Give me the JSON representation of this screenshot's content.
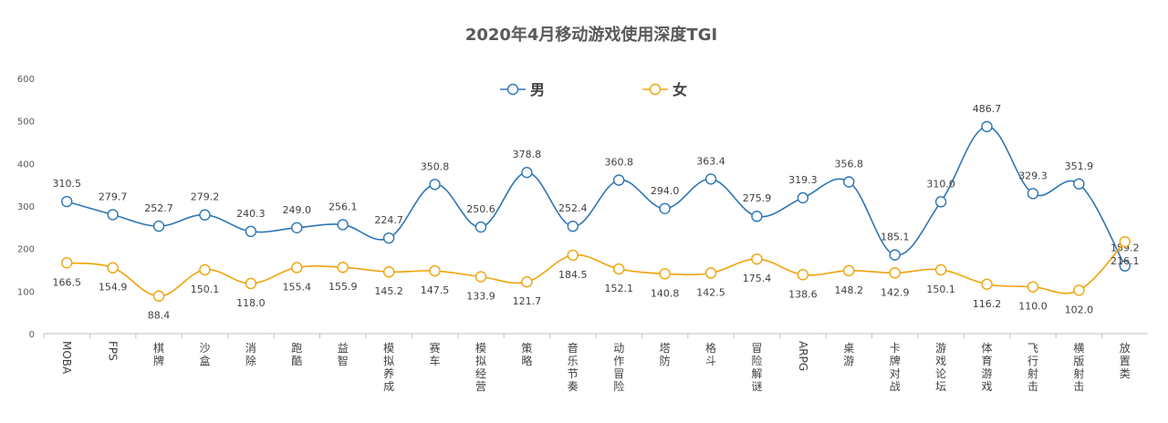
{
  "chart_data": {
    "type": "line",
    "title": "2020年4月移动游戏使用深度TGI",
    "xlabel": "",
    "ylabel": "",
    "ylim": [
      0,
      600
    ],
    "yticks": [
      0,
      100,
      200,
      300,
      400,
      500,
      600
    ],
    "grid": false,
    "legend_position": "top",
    "smooth": true,
    "categories": [
      "MOBA",
      "FPS",
      "棋牌",
      "沙盒",
      "消除",
      "跑酷",
      "益智",
      "模拟养成",
      "赛车",
      "模拟经营",
      "策略",
      "音乐节奏",
      "动作冒险",
      "塔防",
      "格斗",
      "冒险解谜",
      "ARPG",
      "桌游",
      "卡牌对战",
      "游戏论坛",
      "体育游戏",
      "飞行射击",
      "横版射击",
      "放置类"
    ],
    "series": [
      {
        "name": "男",
        "color": "#2E75B6",
        "values": [
          310.5,
          279.7,
          252.7,
          279.2,
          240.3,
          249.0,
          256.1,
          224.7,
          350.8,
          250.6,
          378.8,
          252.4,
          360.8,
          294.0,
          363.4,
          275.9,
          319.3,
          356.8,
          185.1,
          310.0,
          486.7,
          329.3,
          351.9,
          159.2
        ],
        "labels": [
          "310.5",
          "279.7",
          "252.7",
          "279.2",
          "240.3",
          "249.0",
          "256.1",
          "224.7",
          "350.8",
          "250.6",
          "378.8",
          "252.4",
          "360.8",
          "294.0",
          "363.4",
          "275.9",
          "319.3",
          "356.8",
          "185.1",
          "310.0",
          "486.7",
          "329.3",
          "351.9",
          "159.2"
        ]
      },
      {
        "name": "女",
        "color": "#F0A30A",
        "values": [
          166.5,
          154.9,
          88.4,
          150.1,
          118.0,
          155.4,
          155.9,
          145.2,
          147.5,
          133.9,
          121.7,
          184.5,
          152.1,
          140.8,
          142.5,
          175.4,
          138.6,
          148.2,
          142.9,
          150.1,
          116.2,
          110.0,
          102.0,
          216.1
        ],
        "labels": [
          "166.5",
          "154.9",
          "88.4",
          "150.1",
          "118.0",
          "155.4",
          "155.9",
          "145.2",
          "147.5",
          "133.9",
          "121.7",
          "184.5",
          "152.1",
          "140.8",
          "142.5",
          "175.4",
          "138.6",
          "148.2",
          "142.9",
          "150.1",
          "116.2",
          "110.0",
          "102.0",
          "216.1"
        ]
      }
    ]
  }
}
